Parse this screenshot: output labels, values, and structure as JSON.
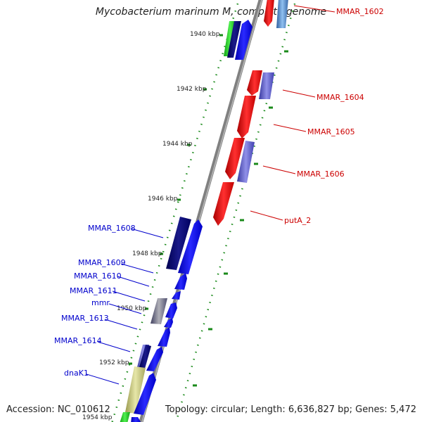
{
  "header": {
    "title": "Mycobacterium marinum M, complete genome"
  },
  "footer": {
    "accession": "Accession: NC_010612",
    "summary": "Topology: circular; Length: 6,636,827 bp; Genes: 5,472"
  },
  "ruler": {
    "labels": [
      "1940 kbp",
      "1942 kbp",
      "1944 kbp",
      "1946 kbp",
      "1948 kbp",
      "1950 kbp",
      "1952 kbp",
      "1954 kbp"
    ]
  },
  "genes": {
    "reverse": [
      {
        "label": "MMAR_1602"
      },
      {
        "label": "MMAR_1604"
      },
      {
        "label": "MMAR_1605"
      },
      {
        "label": "MMAR_1606"
      },
      {
        "label": "putA_2"
      }
    ],
    "forward": [
      {
        "label": "MMAR_1608"
      },
      {
        "label": "MMAR_1609"
      },
      {
        "label": "MMAR_1610"
      },
      {
        "label": "MMAR_1611"
      },
      {
        "label": "mmr"
      },
      {
        "label": "MMAR_1613"
      },
      {
        "label": "MMAR_1614"
      },
      {
        "label": "dnaK1"
      }
    ]
  },
  "colors": {
    "forward_label": "#0000cc",
    "reverse_label": "#cc0000",
    "backbone": "#888888",
    "tick": "#1a8a1a"
  }
}
